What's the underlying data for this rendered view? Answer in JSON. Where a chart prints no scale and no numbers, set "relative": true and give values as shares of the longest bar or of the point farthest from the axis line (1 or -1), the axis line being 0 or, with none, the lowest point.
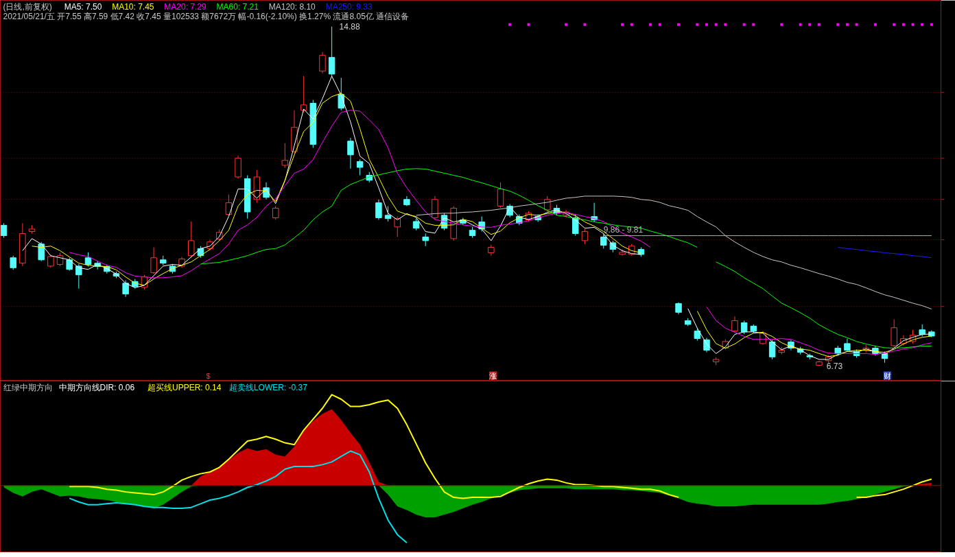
{
  "chart_data": [
    {
      "type": "candlestick",
      "title": "(日线,前复权)",
      "subtitle": "2021/05/21/五 开7.55 高7.59 低7.42 收7.45 量102533 额7672万 幅-0.16(-2.10%) 换1.27% 流通8.05亿 通信设备",
      "categories": [
        null,
        null,
        null,
        null,
        null,
        null,
        null,
        null,
        null,
        null,
        null,
        null,
        null,
        null,
        null,
        null,
        null,
        null,
        null,
        null,
        null,
        null,
        null,
        null,
        null,
        null,
        null,
        null,
        null,
        null,
        null,
        null,
        null,
        null,
        null,
        null,
        null,
        null,
        null,
        null,
        null,
        null,
        null,
        null,
        null,
        null,
        null,
        null,
        null,
        null,
        null,
        null,
        null,
        null,
        null,
        null,
        null,
        null,
        null,
        null,
        null,
        null,
        null,
        null,
        null,
        null,
        null,
        null,
        null,
        null,
        null,
        null,
        null,
        null,
        null,
        null,
        null,
        null,
        null,
        null,
        null,
        null,
        null,
        null,
        null,
        null,
        null,
        null,
        null,
        null,
        null,
        null,
        null,
        null,
        null,
        null,
        null,
        null,
        null,
        null
      ],
      "ohlc": [
        [
          10.11,
          10.16,
          9.81,
          9.86
        ],
        [
          9.33,
          9.38,
          9.04,
          9.09
        ],
        [
          9.2,
          10.16,
          9.13,
          9.91
        ],
        [
          9.96,
          10.11,
          9.91,
          10.02
        ],
        [
          9.66,
          9.71,
          9.25,
          9.28
        ],
        [
          9.13,
          9.41,
          9.09,
          9.36
        ],
        [
          9.17,
          9.45,
          9.13,
          9.38
        ],
        [
          9.28,
          9.33,
          9.02,
          9.05
        ],
        [
          9.13,
          9.18,
          8.59,
          8.92
        ],
        [
          9.33,
          9.46,
          9.12,
          9.17
        ],
        [
          9.2,
          9.25,
          9.05,
          9.12
        ],
        [
          9.12,
          9.17,
          8.95,
          9.0
        ],
        [
          8.95,
          9.0,
          8.84,
          8.89
        ],
        [
          8.72,
          8.79,
          8.39,
          8.46
        ],
        [
          8.76,
          8.82,
          8.59,
          8.64
        ],
        [
          8.62,
          8.92,
          8.57,
          8.87
        ],
        [
          8.97,
          9.58,
          8.94,
          9.33
        ],
        [
          9.28,
          9.38,
          9.15,
          9.2
        ],
        [
          9.13,
          9.18,
          8.95,
          9.0
        ],
        [
          9.13,
          9.35,
          9.09,
          9.3
        ],
        [
          9.38,
          10.2,
          9.33,
          9.74
        ],
        [
          9.55,
          9.61,
          9.33,
          9.38
        ],
        [
          9.55,
          9.76,
          9.51,
          9.71
        ],
        [
          9.78,
          10.01,
          9.74,
          9.94
        ],
        [
          10.37,
          10.85,
          10.34,
          10.65
        ],
        [
          11.27,
          11.78,
          11.23,
          11.72
        ],
        [
          11.23,
          11.31,
          10.27,
          10.43
        ],
        [
          10.73,
          11.44,
          10.65,
          11.27
        ],
        [
          11.01,
          11.14,
          10.73,
          10.78
        ],
        [
          10.29,
          10.57,
          10.24,
          10.52
        ],
        [
          11.55,
          12.08,
          11.49,
          11.67
        ],
        [
          11.88,
          12.87,
          11.84,
          12.46
        ],
        [
          12.87,
          13.69,
          12.82,
          13.0
        ],
        [
          13.04,
          13.12,
          11.97,
          12.05
        ],
        [
          13.81,
          14.27,
          13.76,
          14.19
        ],
        [
          14.14,
          14.88,
          13.69,
          13.74
        ],
        [
          13.25,
          13.65,
          12.87,
          12.92
        ],
        [
          12.13,
          12.21,
          11.47,
          11.8
        ],
        [
          11.64,
          11.69,
          11.31,
          11.5
        ],
        [
          11.31,
          11.39,
          11.14,
          11.19
        ],
        [
          10.65,
          10.73,
          10.24,
          10.29
        ],
        [
          10.35,
          10.57,
          10.2,
          10.27
        ],
        [
          10.07,
          10.32,
          9.83,
          10.27
        ],
        [
          10.73,
          10.81,
          10.57,
          10.6
        ],
        [
          10.2,
          10.27,
          9.99,
          10.04
        ],
        [
          9.83,
          9.91,
          9.61,
          9.74
        ],
        [
          10.29,
          10.81,
          10.24,
          10.73
        ],
        [
          10.35,
          10.4,
          9.99,
          10.04
        ],
        [
          9.79,
          10.57,
          9.74,
          10.52
        ],
        [
          10.24,
          10.29,
          10.11,
          10.16
        ],
        [
          9.99,
          10.07,
          9.81,
          9.86
        ],
        [
          10.19,
          10.32,
          9.96,
          10.02
        ],
        [
          9.45,
          9.64,
          9.38,
          9.58
        ],
        [
          10.57,
          11.14,
          10.53,
          10.98
        ],
        [
          10.57,
          10.62,
          10.3,
          10.35
        ],
        [
          10.32,
          10.37,
          10.11,
          10.16
        ],
        [
          10.24,
          10.45,
          10.2,
          10.4
        ],
        [
          10.32,
          10.37,
          10.19,
          10.24
        ],
        [
          10.48,
          10.81,
          10.43,
          10.73
        ],
        [
          10.52,
          10.6,
          10.35,
          10.4
        ],
        [
          10.35,
          10.48,
          10.3,
          10.43
        ],
        [
          10.29,
          10.37,
          9.86,
          9.91
        ],
        [
          9.74,
          10.02,
          9.66,
          9.96
        ],
        [
          10.32,
          10.65,
          10.19,
          10.24
        ],
        [
          9.83,
          9.91,
          9.55,
          9.63
        ],
        [
          9.69,
          9.74,
          9.46,
          9.53
        ],
        [
          9.41,
          9.53,
          9.38,
          9.46
        ],
        [
          9.41,
          9.66,
          9.38,
          9.61
        ],
        [
          9.53,
          9.58,
          9.36,
          9.41
        ],
        null,
        null,
        null,
        [
          8.23,
          8.26,
          7.97,
          8.02
        ],
        [
          7.82,
          7.88,
          7.69,
          7.73
        ],
        [
          7.57,
          7.64,
          7.34,
          7.39
        ],
        [
          7.36,
          7.41,
          7.06,
          7.11
        ],
        [
          6.83,
          6.94,
          6.75,
          6.89
        ],
        [
          7.16,
          7.37,
          7.13,
          7.32
        ],
        [
          7.57,
          7.92,
          7.54,
          7.82
        ],
        [
          7.77,
          7.82,
          7.5,
          7.55
        ],
        [
          7.69,
          7.73,
          7.52,
          7.57
        ],
        [
          7.27,
          7.57,
          7.24,
          7.52
        ],
        [
          7.31,
          7.36,
          6.89,
          6.95
        ],
        [
          7.06,
          7.19,
          7.01,
          7.11
        ],
        [
          7.31,
          7.36,
          7.11,
          7.16
        ],
        [
          7.14,
          7.19,
          7.01,
          7.06
        ],
        [
          6.98,
          7.03,
          6.89,
          6.95
        ],
        [
          6.75,
          6.86,
          6.73,
          6.83
        ],
        [
          6.86,
          6.99,
          6.81,
          6.95
        ],
        [
          7.16,
          7.22,
          6.98,
          7.03
        ],
        [
          7.27,
          7.39,
          7.08,
          7.11
        ],
        [
          7.08,
          7.13,
          6.93,
          6.98
        ],
        [
          7.11,
          7.24,
          7.06,
          7.16
        ],
        [
          7.16,
          7.22,
          6.98,
          7.03
        ],
        [
          7.03,
          7.08,
          6.81,
          6.91
        ],
        [
          7.22,
          7.85,
          7.17,
          7.65
        ],
        [
          7.27,
          7.47,
          7.22,
          7.39
        ],
        [
          7.32,
          7.6,
          7.27,
          7.47
        ],
        [
          7.6,
          7.73,
          7.44,
          7.49
        ],
        [
          7.55,
          7.59,
          7.42,
          7.45
        ]
      ],
      "colors": [
        "#54fcfc",
        "#54fcfc",
        "#ff3232",
        "#ff3232",
        "#54fcfc",
        "#ff3232",
        "#ff3232",
        "#54fcfc",
        "#54fcfc",
        "#54fcfc",
        "#54fcfc",
        "#54fcfc",
        "#54fcfc",
        "#54fcfc",
        "#54fcfc",
        "#ff3232",
        "#ff3232",
        "#54fcfc",
        "#54fcfc",
        "#ff3232",
        "#ff3232",
        "#54fcfc",
        "#ff3232",
        "#ff3232",
        "#ff3232",
        "#ff3232",
        "#54fcfc",
        "#ff3232",
        "#54fcfc",
        "#ff3232",
        "#ff3232",
        "#ff3232",
        "#ff3232",
        "#54fcfc",
        "#ff3232",
        "#54fcfc",
        "#54fcfc",
        "#54fcfc",
        "#54fcfc",
        "#54fcfc",
        "#54fcfc",
        "#54fcfc",
        "#ff3232",
        "#54fcfc",
        "#54fcfc",
        "#54fcfc",
        "#ff3232",
        "#54fcfc",
        "#ff3232",
        "#54fcfc",
        "#54fcfc",
        "#54fcfc",
        "#ff3232",
        "#ff3232",
        "#54fcfc",
        "#54fcfc",
        "#ff3232",
        "#54fcfc",
        "#ff3232",
        "#54fcfc",
        "#ff3232",
        "#54fcfc",
        "#ff3232",
        "#54fcfc",
        "#54fcfc",
        "#54fcfc",
        "#ff3232",
        "#ff3232",
        "#54fcfc",
        null,
        null,
        null,
        "#54fcfc",
        "#54fcfc",
        "#54fcfc",
        "#54fcfc",
        "#ff3232",
        "#ff3232",
        "#ff3232",
        "#54fcfc",
        "#54fcfc",
        "#ff3232",
        "#54fcfc",
        "#ff3232",
        "#54fcfc",
        "#54fcfc",
        "#54fcfc",
        "#ff3232",
        "#ff3232",
        "#54fcfc",
        "#54fcfc",
        "#54fcfc",
        "#ff3232",
        "#54fcfc",
        "#54fcfc",
        "#ff3232",
        "#ff3232",
        "#ff3232",
        "#54fcfc",
        "#54fcfc"
      ],
      "series": [
        {
          "type": "line",
          "name": "MA5: 7.50",
          "color": "#ffffff",
          "values": [
            null,
            null,
            9.5,
            9.79,
            9.66,
            9.38,
            9.33,
            9.28,
            9.09,
            9.05,
            9.17,
            9.07,
            8.94,
            8.72,
            8.61,
            8.67,
            8.9,
            9.13,
            9.17,
            9.15,
            9.35,
            9.55,
            9.61,
            9.84,
            10.32,
            10.98,
            10.98,
            10.76,
            10.98,
            10.63,
            11.18,
            12.02,
            12.9,
            12.66,
            13.15,
            13.69,
            13.23,
            12.59,
            11.77,
            11.59,
            11.01,
            10.4,
            10.24,
            10.39,
            10.3,
            9.96,
            9.92,
            10.29,
            10.19,
            10.24,
            10.12,
            10.02,
            9.74,
            10.09,
            10.55,
            10.3,
            10.25,
            10.32,
            10.42,
            10.48,
            10.39,
            10.24,
            10.04,
            10.06,
            9.91,
            9.63,
            9.5,
            9.43,
            9.41,
            null,
            null,
            null,
            null,
            8.11,
            7.64,
            7.26,
            7.03,
            7.19,
            7.49,
            7.55,
            7.55,
            7.52,
            7.31,
            7.12,
            7.22,
            7.12,
            6.98,
            6.89,
            6.89,
            7.01,
            7.08,
            7.06,
            7.14,
            7.08,
            7.01,
            7.16,
            7.34,
            7.42,
            7.49,
            7.5
          ]
        },
        {
          "type": "line",
          "name": "MA10: 7.45",
          "color": "#ffff00",
          "values": [
            null,
            null,
            null,
            9.61,
            9.58,
            9.61,
            9.5,
            9.35,
            9.2,
            9.15,
            9.13,
            9.12,
            9.04,
            8.87,
            8.72,
            8.67,
            8.82,
            8.95,
            9.07,
            9.15,
            9.23,
            9.38,
            9.53,
            9.74,
            9.99,
            10.57,
            10.85,
            10.95,
            10.93,
            10.68,
            11.19,
            11.8,
            12.36,
            12.58,
            13.04,
            13.2,
            13.28,
            13.09,
            12.43,
            11.69,
            11.26,
            10.8,
            10.45,
            10.37,
            10.32,
            10.16,
            10.11,
            10.11,
            10.12,
            10.25,
            10.2,
            10.04,
            9.89,
            9.97,
            10.17,
            10.29,
            10.37,
            10.35,
            10.39,
            10.43,
            10.42,
            10.34,
            10.19,
            10.09,
            9.96,
            9.79,
            9.61,
            9.5,
            9.45,
            null,
            null,
            null,
            null,
            null,
            8.05,
            7.6,
            7.27,
            7.16,
            7.26,
            7.41,
            7.52,
            7.54,
            7.44,
            7.29,
            7.19,
            7.14,
            7.11,
            7.03,
            6.96,
            6.99,
            7.08,
            7.11,
            7.11,
            7.08,
            7.06,
            7.13,
            7.26,
            7.36,
            7.42,
            7.45
          ]
        },
        {
          "type": "line",
          "name": "MA20: 7.29",
          "color": "#ff00ff",
          "values": [
            null,
            null,
            null,
            null,
            null,
            null,
            null,
            9.46,
            9.4,
            9.36,
            9.25,
            9.15,
            9.1,
            8.97,
            8.89,
            8.87,
            8.85,
            8.85,
            8.87,
            8.9,
            9.02,
            9.17,
            9.3,
            9.43,
            9.66,
            9.99,
            10.12,
            10.3,
            10.57,
            10.75,
            11.06,
            11.36,
            11.46,
            11.69,
            12.1,
            12.49,
            12.82,
            12.87,
            12.85,
            12.64,
            12.41,
            11.97,
            11.36,
            11.01,
            10.71,
            10.43,
            10.25,
            10.2,
            10.16,
            10.12,
            10.09,
            10.07,
            10.06,
            10.11,
            10.14,
            10.17,
            10.22,
            10.29,
            10.35,
            10.4,
            10.42,
            10.37,
            10.32,
            10.27,
            10.2,
            10.07,
            9.92,
            9.83,
            9.73,
            9.58,
            null,
            null,
            null,
            null,
            null,
            8.15,
            7.82,
            7.64,
            7.54,
            7.44,
            7.37,
            7.37,
            7.37,
            7.39,
            7.37,
            7.29,
            7.21,
            7.11,
            7.04,
            7.03,
            7.03,
            7.03,
            7.03,
            7.01,
            7.04,
            7.09,
            7.14,
            7.17,
            7.24,
            7.29
          ]
        },
        {
          "type": "line",
          "name": "MA60: 7.21",
          "color": "#00ff00",
          "values": [
            null,
            null,
            null,
            null,
            null,
            null,
            null,
            null,
            null,
            null,
            null,
            null,
            null,
            null,
            null,
            null,
            null,
            null,
            null,
            null,
            null,
            9.18,
            9.2,
            9.22,
            9.27,
            9.32,
            9.38,
            9.46,
            9.53,
            9.55,
            9.64,
            9.81,
            9.99,
            10.24,
            10.43,
            10.57,
            10.95,
            11.09,
            11.18,
            11.27,
            11.32,
            11.37,
            11.42,
            11.46,
            11.47,
            11.46,
            11.41,
            11.36,
            11.31,
            11.26,
            11.19,
            11.13,
            11.06,
            10.99,
            10.93,
            10.83,
            10.71,
            10.58,
            10.47,
            10.35,
            10.32,
            10.27,
            10.24,
            10.19,
            10.16,
            10.12,
            10.09,
            10.07,
            10.04,
            9.97,
            9.91,
            9.84,
            9.76,
            9.69,
            9.58,
            null,
            9.23,
            9.12,
            9.0,
            8.85,
            8.72,
            8.59,
            8.41,
            8.24,
            8.13,
            8.01,
            7.88,
            7.72,
            7.6,
            7.49,
            7.41,
            7.32,
            7.26,
            7.21,
            7.17,
            7.16,
            7.17,
            7.19,
            7.21,
            7.21
          ]
        },
        {
          "type": "line",
          "name": "MA120: 8.10",
          "color": "#c8c8c8",
          "values": [
            null,
            null,
            null,
            null,
            null,
            null,
            null,
            null,
            null,
            null,
            null,
            null,
            null,
            null,
            null,
            null,
            null,
            null,
            null,
            null,
            null,
            null,
            null,
            null,
            null,
            null,
            null,
            null,
            null,
            null,
            null,
            null,
            null,
            null,
            null,
            null,
            null,
            null,
            null,
            null,
            null,
            null,
            null,
            null,
            10.35,
            10.37,
            10.39,
            10.4,
            10.4,
            10.42,
            10.43,
            10.45,
            10.47,
            10.5,
            10.53,
            10.57,
            10.6,
            10.63,
            10.66,
            10.71,
            10.76,
            10.78,
            10.81,
            10.81,
            10.81,
            10.81,
            10.8,
            10.78,
            10.73,
            10.71,
            10.66,
            10.58,
            10.53,
            10.47,
            10.32,
            10.19,
            10.07,
            9.86,
            9.71,
            9.58,
            9.46,
            9.36,
            9.28,
            9.23,
            9.15,
            9.09,
            9.02,
            8.95,
            8.89,
            8.82,
            8.74,
            8.69,
            8.61,
            8.52,
            8.44,
            8.38,
            8.31,
            8.24,
            8.18,
            8.1
          ]
        },
        {
          "type": "line",
          "name": "MA250: 9.33",
          "color": "#1c1cff",
          "values": [
            null,
            null,
            null,
            null,
            null,
            null,
            null,
            null,
            null,
            null,
            null,
            null,
            null,
            null,
            null,
            null,
            null,
            null,
            null,
            null,
            null,
            null,
            null,
            null,
            null,
            null,
            null,
            null,
            null,
            null,
            null,
            null,
            null,
            null,
            null,
            null,
            null,
            null,
            null,
            null,
            null,
            null,
            null,
            null,
            null,
            null,
            null,
            null,
            null,
            null,
            null,
            null,
            null,
            null,
            null,
            null,
            null,
            null,
            null,
            null,
            null,
            null,
            null,
            null,
            null,
            null,
            null,
            null,
            null,
            null,
            null,
            null,
            null,
            null,
            null,
            null,
            null,
            null,
            null,
            null,
            null,
            null,
            null,
            null,
            null,
            null,
            null,
            null,
            null,
            9.58,
            9.55,
            9.53,
            9.5,
            9.48,
            9.45,
            9.43,
            9.41,
            9.38,
            9.36,
            9.33
          ]
        },
        {
          "type": "line",
          "name": "9.86 - 9.81",
          "color": "#b4b4b4",
          "values": [
            null,
            null,
            null,
            null,
            null,
            null,
            null,
            null,
            null,
            null,
            null,
            null,
            null,
            null,
            null,
            null,
            null,
            null,
            null,
            null,
            null,
            null,
            null,
            null,
            null,
            null,
            null,
            null,
            null,
            null,
            null,
            null,
            null,
            null,
            null,
            null,
            null,
            null,
            null,
            null,
            null,
            null,
            null,
            null,
            null,
            null,
            null,
            null,
            null,
            null,
            null,
            null,
            null,
            null,
            null,
            null,
            null,
            null,
            null,
            null,
            null,
            null,
            null,
            null,
            9.86,
            9.86,
            9.86,
            9.86,
            9.86,
            9.86,
            9.86,
            9.86,
            9.86,
            9.86,
            9.86,
            9.86,
            9.86,
            9.86,
            9.86,
            9.86,
            9.86,
            9.86,
            9.86,
            9.86,
            9.86,
            9.86,
            9.86,
            9.86,
            9.86,
            9.86,
            9.86,
            9.86,
            9.86,
            9.86,
            9.86,
            9.86,
            9.86,
            9.86,
            9.86,
            9.86
          ]
        },
        {
          "type": "scatter",
          "marker": "square",
          "color": "#ff00ff",
          "values": [
            null,
            null,
            null,
            null,
            null,
            null,
            null,
            null,
            null,
            null,
            null,
            null,
            null,
            null,
            null,
            null,
            null,
            null,
            null,
            null,
            null,
            null,
            null,
            null,
            null,
            null,
            null,
            null,
            null,
            null,
            null,
            null,
            null,
            null,
            null,
            null,
            null,
            null,
            null,
            null,
            null,
            null,
            null,
            null,
            null,
            null,
            null,
            null,
            null,
            null,
            null,
            null,
            null,
            null,
            14.93,
            null,
            14.93,
            null,
            null,
            null,
            14.93,
            null,
            14.93,
            null,
            null,
            null,
            14.93,
            14.93,
            null,
            14.93,
            14.93,
            null,
            14.93,
            null,
            14.93,
            14.93,
            14.93,
            14.93,
            null,
            14.93,
            14.93,
            null,
            null,
            14.93,
            null,
            14.93,
            14.93,
            14.93,
            null,
            14.93,
            14.93,
            14.93,
            null,
            14.93,
            null,
            14.93,
            14.93,
            14.93,
            14.93,
            14.93
          ]
        }
      ],
      "ylim": [
        6.37,
        15.51
      ],
      "yticks": [
        {
          "value": 13.31,
          "label": null
        },
        {
          "value": 11.72,
          "label": null
        },
        {
          "value": 10.73,
          "label": null
        },
        {
          "value": 9.76,
          "label": null
        },
        {
          "value": 8.17,
          "label": null
        }
      ],
      "grid": "y",
      "legend": "top left",
      "annotations": [
        "14.88",
        "6.73",
        "$",
        "涨",
        "财"
      ]
    },
    {
      "type": "line",
      "title": "红绿中期方向",
      "subtitle": "中期方向线DIR: 0.06",
      "relative": true,
      "categories": [
        null,
        null,
        null,
        null,
        null,
        null,
        null,
        null,
        null,
        null,
        null,
        null,
        null,
        null,
        null,
        null,
        null,
        null,
        null,
        null,
        null,
        null,
        null,
        null,
        null,
        null,
        null,
        null,
        null,
        null,
        null,
        null,
        null,
        null,
        null,
        null,
        null,
        null,
        null,
        null,
        null,
        null,
        null,
        null,
        null,
        null,
        null,
        null,
        null,
        null,
        null,
        null,
        null,
        null,
        null,
        null,
        null,
        null,
        null,
        null,
        null,
        null,
        null,
        null,
        null,
        null,
        null,
        null,
        null,
        null,
        null,
        null,
        null,
        null,
        null,
        null,
        null,
        null,
        null,
        null,
        null,
        null,
        null,
        null,
        null,
        null,
        null,
        null,
        null,
        null,
        null,
        null,
        null,
        null,
        null,
        null,
        null,
        null,
        null,
        null
      ],
      "series": [
        {
          "type": "area",
          "color": "#c80000",
          "values": [
            0,
            0,
            0,
            0,
            0,
            0,
            0,
            0,
            0,
            0,
            0,
            0,
            0,
            0,
            0,
            0,
            0,
            0,
            0,
            0,
            0,
            0.1,
            0.15,
            0.2,
            0.28,
            0.36,
            0.41,
            0.38,
            0.4,
            0.34,
            0.32,
            0.43,
            0.6,
            0.71,
            0.79,
            0.84,
            0.72,
            0.58,
            0.45,
            0.26,
            0.04,
            0,
            0,
            0,
            0,
            0,
            0,
            0,
            0,
            0,
            0,
            0,
            0,
            0,
            0,
            0,
            0,
            0,
            0,
            0,
            0,
            0,
            0,
            0,
            0,
            0,
            0,
            0,
            0,
            0,
            0,
            0,
            0,
            0,
            0,
            0,
            0,
            0,
            0,
            0,
            0,
            0,
            0,
            0,
            0,
            0,
            0,
            0,
            0,
            0,
            0,
            0,
            0,
            0,
            0,
            0,
            0,
            0,
            0.02,
            0.03
          ]
        },
        {
          "type": "area",
          "color": "#00a000",
          "values": [
            -0.02,
            -0.08,
            -0.12,
            -0.07,
            -0.04,
            -0.08,
            -0.12,
            -0.11,
            -0.12,
            -0.14,
            -0.15,
            -0.16,
            -0.18,
            -0.2,
            -0.21,
            -0.23,
            -0.25,
            -0.21,
            -0.14,
            -0.07,
            -0.01,
            0,
            0,
            0,
            0,
            0,
            0,
            0,
            0,
            0,
            0,
            0,
            0,
            0,
            0,
            0,
            0,
            0,
            0,
            0,
            0,
            -0.1,
            -0.23,
            -0.27,
            -0.32,
            -0.35,
            -0.35,
            -0.32,
            -0.29,
            -0.25,
            -0.21,
            -0.18,
            -0.14,
            -0.11,
            -0.08,
            -0.05,
            -0.04,
            -0.03,
            -0.03,
            -0.03,
            -0.03,
            -0.04,
            -0.04,
            -0.04,
            -0.04,
            -0.04,
            -0.05,
            -0.05,
            -0.06,
            -0.07,
            -0.08,
            -0.11,
            -0.14,
            -0.18,
            -0.2,
            -0.21,
            -0.23,
            -0.23,
            -0.23,
            -0.22,
            -0.21,
            -0.21,
            -0.21,
            -0.21,
            -0.21,
            -0.21,
            -0.21,
            -0.21,
            -0.2,
            -0.18,
            -0.17,
            -0.15,
            -0.13,
            -0.1,
            -0.07,
            -0.04,
            -0.01,
            0,
            0,
            0
          ]
        },
        {
          "type": "line",
          "name": "超买线UPPER: 0.14",
          "color": "#ffff00",
          "values": [
            null,
            null,
            null,
            null,
            null,
            null,
            null,
            -0.01,
            -0.01,
            -0.01,
            -0.02,
            -0.04,
            -0.05,
            -0.07,
            -0.08,
            -0.09,
            -0.1,
            -0.07,
            -0.01,
            0.06,
            0.1,
            0.13,
            0.15,
            0.2,
            0.29,
            0.39,
            0.49,
            0.51,
            0.54,
            0.51,
            0.47,
            0.45,
            0.61,
            0.73,
            0.85,
            1.0,
            0.95,
            0.87,
            0.87,
            0.89,
            0.92,
            0.94,
            0.85,
            0.67,
            0.46,
            0.25,
            0.08,
            -0.07,
            -0.13,
            -0.14,
            -0.13,
            -0.13,
            -0.13,
            -0.12,
            -0.07,
            -0.02,
            0.02,
            0.05,
            0.07,
            0.06,
            0.03,
            0.01,
            0.01,
            0,
            -0.01,
            -0.01,
            -0.02,
            -0.03,
            -0.04,
            -0.04,
            -0.06,
            -0.1,
            -0.13,
            null,
            null,
            null,
            null,
            null,
            null,
            null,
            null,
            null,
            null,
            null,
            null,
            null,
            null,
            null,
            null,
            null,
            null,
            -0.13,
            -0.13,
            -0.11,
            -0.1,
            -0.07,
            -0.04,
            0,
            0.04,
            0.07
          ]
        },
        {
          "type": "line",
          "name": "超卖线LOWER: -0.37",
          "color": "#00e0e8",
          "values": [
            null,
            null,
            null,
            null,
            null,
            null,
            null,
            -0.14,
            -0.18,
            -0.21,
            -0.21,
            -0.2,
            -0.19,
            -0.2,
            -0.21,
            -0.23,
            -0.24,
            -0.24,
            -0.25,
            -0.25,
            -0.24,
            -0.2,
            -0.16,
            -0.14,
            -0.11,
            -0.07,
            -0.02,
            0.01,
            0.05,
            0.1,
            0.18,
            0.21,
            0.21,
            0.21,
            0.23,
            0.26,
            0.32,
            0.38,
            0.34,
            0.15,
            -0.14,
            -0.38,
            -0.54,
            -0.63,
            null,
            null,
            null,
            null,
            null,
            null,
            null,
            null,
            null,
            null,
            null,
            null,
            null,
            null,
            null,
            null,
            null,
            null,
            null,
            null,
            null,
            null,
            null,
            null,
            null,
            null,
            null,
            null,
            null,
            null,
            null,
            null,
            null,
            null,
            null,
            null,
            null,
            null,
            null,
            null,
            null,
            null,
            null,
            null,
            null,
            null,
            null,
            null,
            null,
            null,
            null,
            null,
            null,
            null,
            null,
            null
          ]
        }
      ],
      "ref_lines": [
        {
          "axis": "y",
          "value": 0,
          "color": "#8c0000"
        }
      ],
      "legend": "top left"
    }
  ]
}
